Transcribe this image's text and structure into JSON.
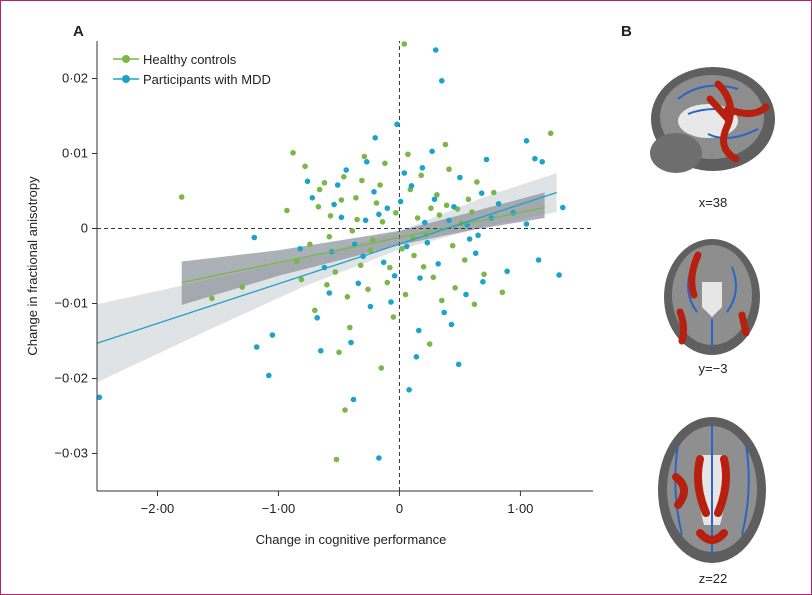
{
  "panels": {
    "a_label": "A",
    "b_label": "B"
  },
  "colors": {
    "healthy": "#7ab648",
    "mdd": "#1ba3c8",
    "band_healthy": "#8c939b",
    "band_mdd": "#d6d9dc",
    "frame": "#b8226a"
  },
  "chart_data": {
    "type": "scatter",
    "title": "",
    "xlabel": "Change in cognitive performance",
    "ylabel": "Change in fractional anisotropy",
    "xlim": [
      -2.5,
      1.6
    ],
    "ylim": [
      -0.035,
      0.025
    ],
    "xticks": [
      -2.0,
      -1.0,
      0,
      1.0
    ],
    "xtick_labels": [
      "−2·00",
      "−1·00",
      "0",
      "1·00"
    ],
    "yticks": [
      -0.03,
      -0.02,
      -0.01,
      0,
      0.01,
      0.02
    ],
    "ytick_labels": [
      "−0·03",
      "−0·02",
      "−0·01",
      "0",
      "0·01",
      "0·02"
    ],
    "grid": false,
    "legend_position": "top-left",
    "reference_lines": {
      "x": 0,
      "y": 0
    },
    "series": [
      {
        "name": "Healthy controls",
        "color": "#7ab648",
        "fit": {
          "x": [
            -1.8,
            1.2
          ],
          "y": [
            -0.0072,
            0.0028
          ]
        },
        "band": {
          "x": [
            -1.8,
            -1.0,
            0,
            0.6,
            1.2
          ],
          "lower": [
            -0.0102,
            -0.0063,
            -0.0022,
            -0.0002,
            0.0014
          ],
          "upper": [
            -0.0044,
            -0.0029,
            -0.0003,
            0.0022,
            0.0048
          ]
        },
        "points": [
          [
            -1.8,
            0.0042
          ],
          [
            -1.55,
            -0.0093
          ],
          [
            -1.3,
            -0.0078
          ],
          [
            -0.52,
            -0.0308
          ],
          [
            -0.45,
            -0.0242
          ],
          [
            -0.15,
            -0.0186
          ],
          [
            0.04,
            0.0246
          ],
          [
            1.25,
            0.0127
          ],
          [
            0.62,
            -0.0101
          ],
          [
            0.85,
            -0.0085
          ],
          [
            -0.93,
            0.0024
          ],
          [
            -0.78,
            0.0083
          ],
          [
            -0.62,
            0.0061
          ],
          [
            -0.48,
            0.0038
          ],
          [
            -0.35,
            0.0012
          ],
          [
            -0.22,
            -0.0015
          ],
          [
            -0.08,
            -0.0052
          ],
          [
            0.05,
            -0.0088
          ],
          [
            0.18,
            0.0071
          ],
          [
            0.31,
            0.0045
          ],
          [
            0.44,
            -0.0023
          ],
          [
            0.57,
            0.0039
          ],
          [
            0.7,
            -0.0061
          ],
          [
            -0.85,
            -0.0044
          ],
          [
            -0.7,
            -0.0109
          ],
          [
            -0.57,
            0.0017
          ],
          [
            -0.41,
            -0.0132
          ],
          [
            -0.29,
            0.0096
          ],
          [
            -0.16,
            0.0058
          ],
          [
            -0.03,
            0.0021
          ],
          [
            0.12,
            -0.0036
          ],
          [
            0.25,
            -0.0154
          ],
          [
            0.38,
            0.0112
          ],
          [
            0.51,
            0.0007
          ],
          [
            0.64,
            0.0062
          ],
          [
            -0.88,
            0.0101
          ],
          [
            -0.74,
            -0.0021
          ],
          [
            -0.6,
            -0.0075
          ],
          [
            -0.46,
            0.0069
          ],
          [
            -0.32,
            -0.0049
          ],
          [
            -0.19,
            0.0034
          ],
          [
            -0.05,
            -0.0118
          ],
          [
            0.09,
            0.0052
          ],
          [
            0.22,
            -0.0008
          ],
          [
            0.35,
            -0.0096
          ],
          [
            0.48,
            0.0026
          ],
          [
            0.78,
            0.0048
          ],
          [
            -0.67,
            0.0029
          ],
          [
            -0.53,
            -0.0058
          ],
          [
            -0.39,
            -0.0003
          ],
          [
            -0.26,
            -0.0081
          ],
          [
            -0.12,
            0.0087
          ],
          [
            0.02,
            -0.0027
          ],
          [
            0.15,
            0.0014
          ],
          [
            0.28,
            -0.0065
          ],
          [
            0.41,
            0.0079
          ],
          [
            0.54,
            -0.0042
          ],
          [
            -0.81,
            -0.0068
          ],
          [
            -0.66,
            0.0052
          ],
          [
            -0.5,
            -0.0165
          ],
          [
            -0.36,
            0.0041
          ],
          [
            -0.24,
            -0.0029
          ],
          [
            -0.1,
            -0.0072
          ],
          [
            0.07,
            0.0099
          ],
          [
            0.2,
            -0.0051
          ],
          [
            0.33,
            0.0018
          ],
          [
            0.46,
            -0.0079
          ],
          [
            0.6,
            0.0022
          ],
          [
            -0.43,
            -0.0091
          ],
          [
            -0.14,
            0.0009
          ],
          [
            0.11,
            -0.0013
          ],
          [
            0.39,
            0.0031
          ],
          [
            -0.58,
            -0.0011
          ],
          [
            0.26,
            0.0027
          ],
          [
            -0.31,
            0.0064
          ]
        ]
      },
      {
        "name": "Participants with MDD",
        "color": "#1ba3c8",
        "fit": {
          "x": [
            -2.5,
            1.3
          ],
          "y": [
            -0.0153,
            0.0048
          ]
        },
        "band": {
          "x": [
            -2.5,
            -1.6,
            -0.8,
            0,
            0.7,
            1.3
          ],
          "lower": [
            -0.0205,
            -0.0137,
            -0.0078,
            -0.0028,
            0.0002,
            0.0022
          ],
          "upper": [
            -0.0101,
            -0.0069,
            -0.004,
            -0.0004,
            0.0042,
            0.0074
          ]
        },
        "points": [
          [
            -2.48,
            -0.0225
          ],
          [
            -1.18,
            -0.0158
          ],
          [
            -1.08,
            -0.0196
          ],
          [
            -0.38,
            -0.0228
          ],
          [
            -0.17,
            -0.0306
          ],
          [
            0.08,
            -0.0215
          ],
          [
            0.3,
            0.0238
          ],
          [
            0.35,
            0.0197
          ],
          [
            1.05,
            0.0117
          ],
          [
            1.12,
            0.0093
          ],
          [
            1.18,
            0.0089
          ],
          [
            1.05,
            0.0006
          ],
          [
            1.15,
            -0.0042
          ],
          [
            1.35,
            0.0028
          ],
          [
            1.32,
            -0.0062
          ],
          [
            -1.05,
            -0.0142
          ],
          [
            -1.2,
            -0.0012
          ],
          [
            -0.72,
            0.0041
          ],
          [
            -0.58,
            -0.0086
          ],
          [
            -0.44,
            0.0078
          ],
          [
            -0.3,
            -0.0037
          ],
          [
            -0.17,
            0.0019
          ],
          [
            -0.04,
            -0.0063
          ],
          [
            0.1,
            0.0057
          ],
          [
            0.23,
            -0.0019
          ],
          [
            0.37,
            -0.0112
          ],
          [
            0.5,
            0.0068
          ],
          [
            0.63,
            -0.0033
          ],
          [
            0.76,
            0.0014
          ],
          [
            0.89,
            -0.0057
          ],
          [
            -0.82,
            -0.0027
          ],
          [
            -0.68,
            -0.0119
          ],
          [
            -0.54,
            0.0032
          ],
          [
            -0.4,
            -0.0152
          ],
          [
            -0.27,
            0.0089
          ],
          [
            -0.13,
            -0.0045
          ],
          [
            0.01,
            0.0036
          ],
          [
            0.14,
            -0.0171
          ],
          [
            0.27,
            0.0103
          ],
          [
            0.41,
            0.0011
          ],
          [
            0.55,
            -0.0088
          ],
          [
            0.68,
            0.0047
          ],
          [
            -0.76,
            0.0063
          ],
          [
            -0.62,
            -0.0052
          ],
          [
            -0.48,
            0.0015
          ],
          [
            -0.34,
            -0.0073
          ],
          [
            -0.21,
            0.0049
          ],
          [
            -0.07,
            -0.0098
          ],
          [
            0.06,
            -0.0024
          ],
          [
            0.19,
            0.0081
          ],
          [
            0.32,
            -0.0047
          ],
          [
            0.45,
            0.0029
          ],
          [
            0.58,
            -0.0014
          ],
          [
            0.72,
            0.0092
          ],
          [
            -0.65,
            -0.0163
          ],
          [
            -0.51,
            0.0058
          ],
          [
            -0.37,
            -0.0021
          ],
          [
            -0.24,
            -0.0104
          ],
          [
            -0.1,
            0.0027
          ],
          [
            0.04,
            0.0074
          ],
          [
            0.17,
            -0.0066
          ],
          [
            0.29,
            0.0039
          ],
          [
            0.43,
            -0.0128
          ],
          [
            0.56,
            0.0005
          ],
          [
            0.69,
            -0.0071
          ],
          [
            0.82,
            0.0033
          ],
          [
            -0.2,
            0.0121
          ],
          [
            -0.02,
            0.0139
          ],
          [
            0.16,
            -0.0136
          ],
          [
            0.49,
            -0.0181
          ],
          [
            -0.56,
            -0.0031
          ],
          [
            -0.28,
            0.0011
          ],
          [
            0.21,
            0.0008
          ],
          [
            0.65,
            -0.0009
          ],
          [
            0.94,
            0.0021
          ]
        ]
      }
    ]
  },
  "brain_captions": {
    "sagittal": "x=38",
    "coronal": "y=−3",
    "axial": "z=22"
  }
}
